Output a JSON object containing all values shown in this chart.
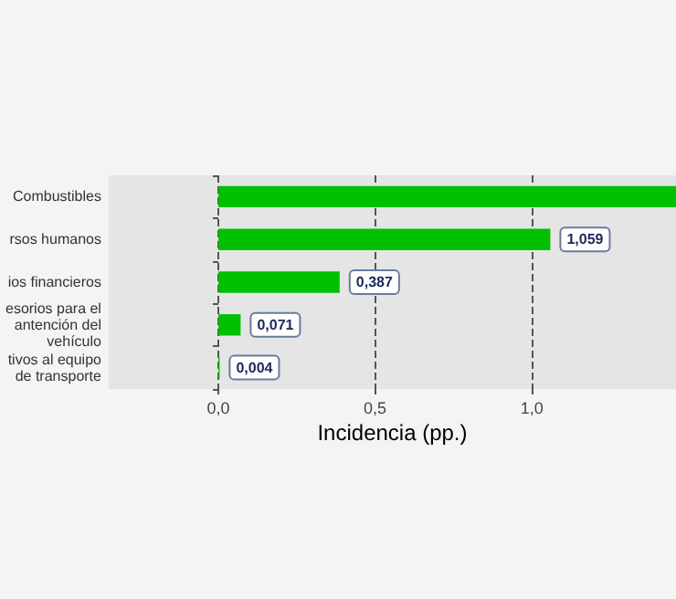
{
  "chart_data": {
    "type": "bar",
    "orientation": "horizontal",
    "xlabel": "Incidencia (pp.)",
    "categories": [
      "Combustibles",
      "rsos humanos",
      "ios financieros",
      "esorios para el\nantención del\nvehículo",
      "tivos al equipo\nde transporte"
    ],
    "values": [
      1.46,
      1.059,
      0.387,
      0.071,
      0.004
    ],
    "value_labels": [
      null,
      "1,059",
      "0,387",
      "0,071",
      "0,004"
    ],
    "color": "#00c000",
    "xlim": [
      -0.35,
      1.46
    ],
    "xticks": [
      {
        "value": 0,
        "label": "0,0"
      },
      {
        "value": 0.5,
        "label": "0,5"
      },
      {
        "value": 1,
        "label": "1,0"
      }
    ],
    "grid": "x"
  }
}
